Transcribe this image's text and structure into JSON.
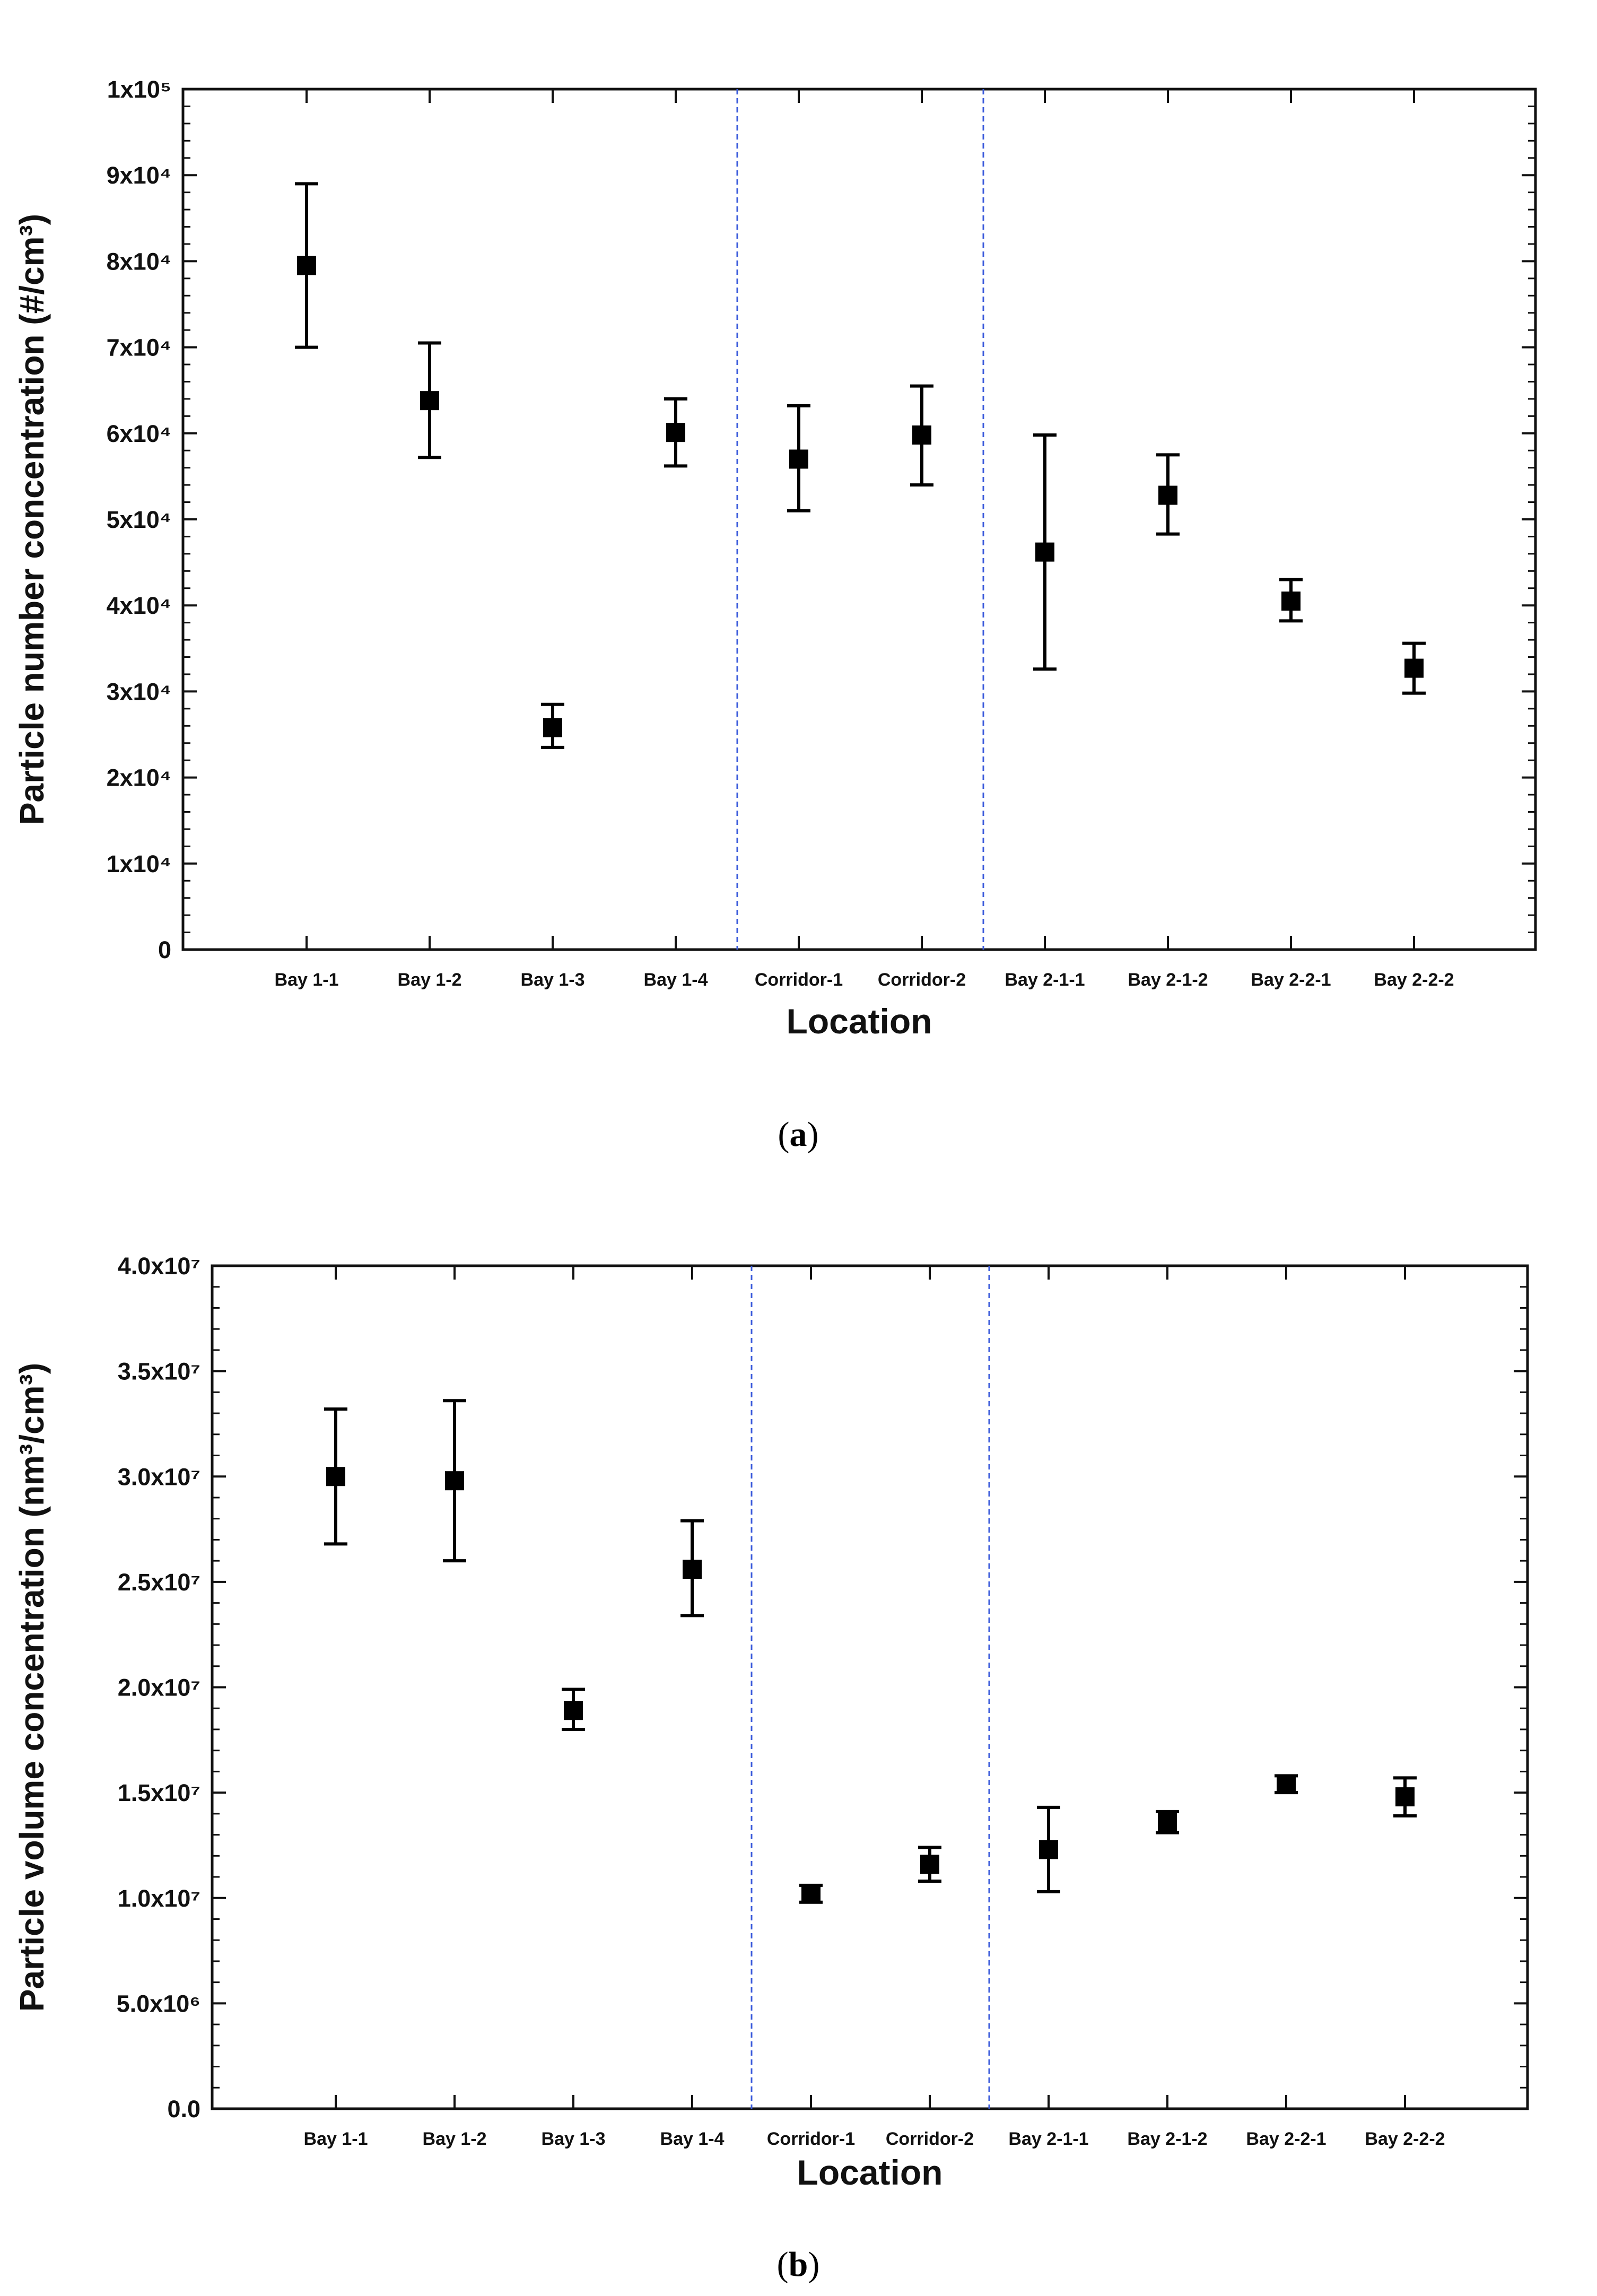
{
  "chart_data": [
    {
      "type": "scatter",
      "panel": "a",
      "caption_letter": "a",
      "title": "",
      "xlabel": "Location",
      "ylabel": "Particle number concentration (#/cm³)",
      "ylim": [
        0,
        100000
      ],
      "y_ticks": [
        0,
        10000,
        20000,
        30000,
        40000,
        50000,
        60000,
        70000,
        80000,
        90000,
        100000
      ],
      "y_tick_labels": [
        "0",
        "1x10⁴",
        "2x10⁴",
        "3x10⁴",
        "4x10⁴",
        "5x10⁴",
        "6x10⁴",
        "7x10⁴",
        "8x10⁴",
        "9x10⁴",
        "1x10⁵"
      ],
      "y_minor_per_major": 4,
      "categories": [
        "Bay 1-1",
        "Bay 1-2",
        "Bay 1-3",
        "Bay 1-4",
        "Corridor-1",
        "Corridor-2",
        "Bay 2-1-1",
        "Bay 2-1-2",
        "Bay 2-2-1",
        "Bay 2-2-2"
      ],
      "values": [
        79500,
        63800,
        25800,
        60100,
        57000,
        59800,
        46200,
        52800,
        40500,
        32700
      ],
      "error_low": [
        70000,
        57200,
        23500,
        56200,
        51000,
        54000,
        32600,
        48300,
        38200,
        29800
      ],
      "error_high": [
        89000,
        70500,
        28500,
        64000,
        63200,
        65500,
        59800,
        57500,
        43000,
        35600
      ],
      "separators_after_index": [
        3,
        5
      ],
      "marker": "square",
      "grid": false,
      "legend": "none"
    },
    {
      "type": "scatter",
      "panel": "b",
      "caption_letter": "b",
      "title": "",
      "xlabel": "Location",
      "ylabel": "Particle volume concentration (nm³/cm³)",
      "ylim": [
        0,
        40000000
      ],
      "y_ticks": [
        0,
        5000000,
        10000000,
        15000000,
        20000000,
        25000000,
        30000000,
        35000000,
        40000000
      ],
      "y_tick_labels": [
        "0.0",
        "5.0x10⁶",
        "1.0x10⁷",
        "1.5x10⁷",
        "2.0x10⁷",
        "2.5x10⁷",
        "3.0x10⁷",
        "3.5x10⁷",
        "4.0x10⁷"
      ],
      "y_minor_per_major": 4,
      "categories": [
        "Bay 1-1",
        "Bay 1-2",
        "Bay 1-3",
        "Bay 1-4",
        "Corridor-1",
        "Corridor-2",
        "Bay 2-1-1",
        "Bay 2-1-2",
        "Bay 2-2-1",
        "Bay 2-2-2"
      ],
      "values": [
        30000000,
        29800000,
        18900000,
        25600000,
        10200000,
        11600000,
        12300000,
        13600000,
        15400000,
        14800000
      ],
      "error_low": [
        26800000,
        26000000,
        18000000,
        23400000,
        9800000,
        10800000,
        10300000,
        13100000,
        15000000,
        13900000
      ],
      "error_high": [
        33200000,
        33600000,
        19900000,
        27900000,
        10600000,
        12400000,
        14300000,
        14100000,
        15800000,
        15700000
      ],
      "separators_after_index": [
        3,
        5
      ],
      "marker": "square",
      "grid": false,
      "legend": "none"
    }
  ],
  "colors": {
    "axis": "#111111",
    "marker": "#000000",
    "separator": "#3b5bdb"
  }
}
